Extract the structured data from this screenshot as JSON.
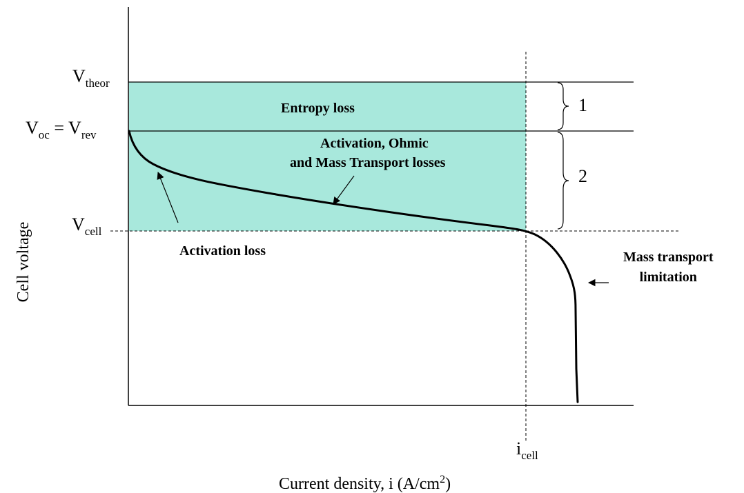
{
  "labels": {
    "v_theor": {
      "main": "V",
      "sub": "theor"
    },
    "v_oc": {
      "main": "V",
      "sub": "oc"
    },
    "equals": " = ",
    "v_rev": {
      "main": "V",
      "sub": "rev"
    },
    "v_cell": {
      "main": "V",
      "sub": "cell"
    },
    "i_cell": {
      "main": "i",
      "sub": "cell"
    },
    "entropy_loss": "Entropy loss",
    "combined_losses_line1": "Activation, Ohmic",
    "combined_losses_line2": "and Mass Transport losses",
    "activation_loss": "Activation loss",
    "mass_transport_line1": "Mass transport",
    "mass_transport_line2": "limitation",
    "brace_1": "1",
    "brace_2": "2"
  },
  "axes": {
    "y_title": "Cell voltage",
    "x_title_main": "Current density, i (A/cm",
    "x_title_sup": "2",
    "x_title_end": ")"
  },
  "colors": {
    "fill": "#a8e8dc",
    "line": "#000000"
  }
}
